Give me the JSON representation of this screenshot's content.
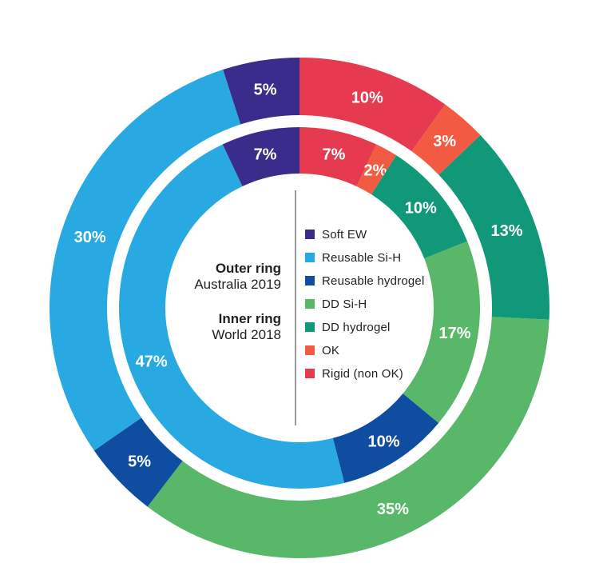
{
  "background": "#ffffff",
  "center": {
    "outer_ring_title": "Outer ring",
    "outer_ring_subtitle": "Australia 2019",
    "inner_ring_title": "Inner ring",
    "inner_ring_subtitle": "World 2018"
  },
  "legend": {
    "items": [
      {
        "label": "Soft EW",
        "color": "#3a2c8a"
      },
      {
        "label": "Reusable Si-H",
        "color": "#29a9e1"
      },
      {
        "label": "Reusable hydrogel",
        "color": "#0e4da0"
      },
      {
        "label": "DD Si-H",
        "color": "#58b768"
      },
      {
        "label": "DD hydrogel",
        "color": "#119879"
      },
      {
        "label": "OK",
        "color": "#f25b41"
      },
      {
        "label": "Rigid (non OK)",
        "color": "#e63a50"
      }
    ]
  },
  "chart_data": {
    "type": "pie",
    "variant": "nested-donut",
    "value_suffix": "%",
    "start_angle_deg": 0,
    "direction": "clockwise",
    "label_color": "#ffffff",
    "legend_position": "center-right",
    "categories": [
      "Soft EW",
      "Reusable Si-H",
      "Reusable hydrogel",
      "DD Si-H",
      "DD hydrogel",
      "OK",
      "Rigid (non OK)"
    ],
    "rings": [
      {
        "id": "outer",
        "title": "Outer ring",
        "subtitle": "Australia 2019",
        "segments": [
          {
            "category": "Rigid (non OK)",
            "value": 10,
            "color": "#e63a50"
          },
          {
            "category": "OK",
            "value": 3,
            "color": "#f25b41"
          },
          {
            "category": "DD hydrogel",
            "value": 13,
            "color": "#119879"
          },
          {
            "category": "DD Si-H",
            "value": 35,
            "color": "#58b768"
          },
          {
            "category": "Reusable hydrogel",
            "value": 5,
            "color": "#0e4da0"
          },
          {
            "category": "Reusable Si-H",
            "value": 30,
            "color": "#29a9e1"
          },
          {
            "category": "Soft EW",
            "value": 5,
            "color": "#3a2c8a"
          }
        ]
      },
      {
        "id": "inner",
        "title": "Inner ring",
        "subtitle": "World 2018",
        "segments": [
          {
            "category": "Rigid (non OK)",
            "value": 7,
            "color": "#e63a50"
          },
          {
            "category": "OK",
            "value": 2,
            "color": "#f25b41"
          },
          {
            "category": "DD hydrogel",
            "value": 10,
            "color": "#119879"
          },
          {
            "category": "DD Si-H",
            "value": 17,
            "color": "#58b768"
          },
          {
            "category": "Reusable hydrogel",
            "value": 10,
            "color": "#0e4da0"
          },
          {
            "category": "Reusable Si-H",
            "value": 47,
            "color": "#29a9e1"
          },
          {
            "category": "Soft EW",
            "value": 7,
            "color": "#3a2c8a"
          }
        ]
      }
    ]
  }
}
